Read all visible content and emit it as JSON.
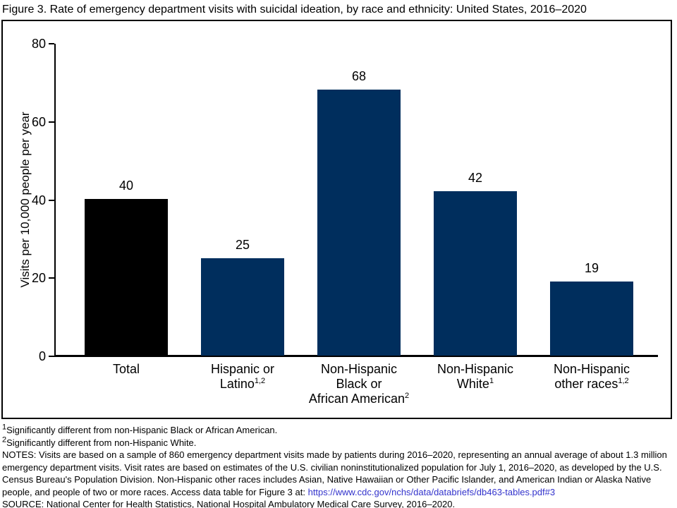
{
  "title": "Figure 3. Rate of emergency department visits with suicidal ideation, by race and ethnicity: United States, 2016–2020",
  "chart_data": {
    "type": "bar",
    "title": "Rate of emergency department visits with suicidal ideation, by race and ethnicity: United States, 2016–2020",
    "categories": [
      "Total",
      "Hispanic or Latino",
      "Non-Hispanic Black or African American",
      "Non-Hispanic White",
      "Non-Hispanic other races"
    ],
    "category_label_lines": [
      [
        {
          "text": "Total"
        }
      ],
      [
        {
          "text": "Hispanic or"
        },
        {
          "text": "Latino",
          "sup": "1,2"
        }
      ],
      [
        {
          "text": "Non-Hispanic"
        },
        {
          "text": "Black or"
        },
        {
          "text": "African American",
          "sup": "2"
        }
      ],
      [
        {
          "text": "Non-Hispanic"
        },
        {
          "text": "White",
          "sup": "1"
        }
      ],
      [
        {
          "text": "Non-Hispanic"
        },
        {
          "text": "other races",
          "sup": "1,2"
        }
      ]
    ],
    "values": [
      40,
      25,
      68,
      42,
      19
    ],
    "bar_colors": [
      "#000000",
      "#002e5d",
      "#002e5d",
      "#002e5d",
      "#002e5d"
    ],
    "xlabel": "",
    "ylabel": "Visits per 10,000 people per year",
    "ylim": [
      0,
      80
    ],
    "yticks": [
      0,
      20,
      40,
      60,
      80
    ],
    "grid": false,
    "legend": "none"
  },
  "footnotes": {
    "fn1_sup": "1",
    "fn1_text": "Significantly different from non-Hispanic Black or African American.",
    "fn2_sup": "2",
    "fn2_text": "Significantly different from non-Hispanic White.",
    "notes_text": "NOTES: Visits are based on a sample of 860 emergency department visits made by patients during 2016–2020, representing an annual average of about 1.3 million emergency department visits. Visit rates are based on estimates of the U.S. civilian noninstitutionalized population for July 1, 2016–2020, as developed by the U.S. Census Bureau's Population Division. Non-Hispanic other races includes Asian, Native Hawaiian or Other Pacific Islander, and American Indian or Alaska Native people, and people of two or more races. Access data table for Figure 3 at: ",
    "link_text": "https://www.cdc.gov/nchs/data/databriefs/db463-tables.pdf#3",
    "link_suffix": "",
    "link_color": "#3333cc",
    "source_text": "SOURCE: National Center for Health Statistics, National Hospital Ambulatory Medical Care Survey, 2016–2020."
  }
}
